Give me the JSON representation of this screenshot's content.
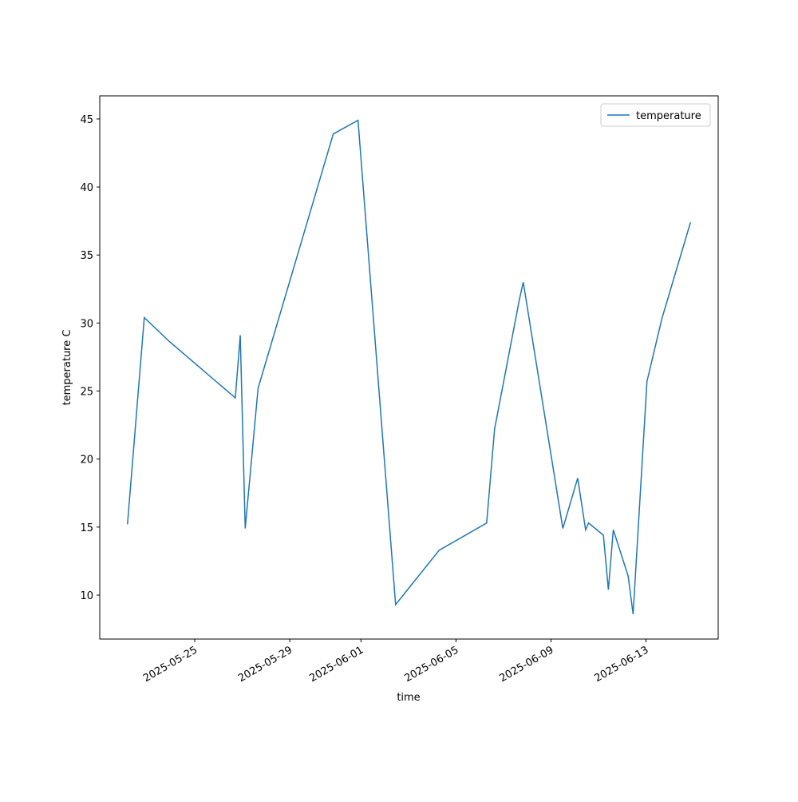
{
  "chart_data": {
    "type": "line",
    "xlabel": "time",
    "ylabel": "temperature C",
    "legend": "upper right",
    "x": [
      "2025-05-22T04:00",
      "2025-05-22T21:00",
      "2025-05-23T23:00",
      "2025-05-26T17:00",
      "2025-05-26T22:00",
      "2025-05-27T03:00",
      "2025-05-27T16:00",
      "2025-05-30T20:00",
      "2025-05-31T21:00",
      "2025-06-02T11:00",
      "2025-06-04T07:00",
      "2025-06-06T07:00",
      "2025-06-06T15:00",
      "2025-06-07T16:00",
      "2025-06-07T20:00",
      "2025-06-09T12:00",
      "2025-06-10T03:00",
      "2025-06-10T11:00",
      "2025-06-10T14:00",
      "2025-06-11T05:00",
      "2025-06-11T10:00",
      "2025-06-11T15:00",
      "2025-06-12T06:00",
      "2025-06-12T11:00",
      "2025-06-13T01:00",
      "2025-06-13T16:00",
      "2025-06-14T21:00"
    ],
    "series": [
      {
        "name": "temperature",
        "color": "#1f77b4",
        "values": [
          15.2,
          30.4,
          28.6,
          24.5,
          29.1,
          14.9,
          25.2,
          43.9,
          44.9,
          9.3,
          13.3,
          15.3,
          22.2,
          31.7,
          33.0,
          14.9,
          18.6,
          14.8,
          15.3,
          14.4,
          10.4,
          14.8,
          11.4,
          8.6,
          25.7,
          30.3,
          37.4
        ]
      }
    ],
    "xlim": [
      "2025-05-21T00:00",
      "2025-06-16T01:00"
    ],
    "xticks": [
      "2025-05-25",
      "2025-05-29",
      "2025-06-01",
      "2025-06-05",
      "2025-06-09",
      "2025-06-13"
    ],
    "ylim": [
      6.77,
      46.7
    ],
    "yticks": [
      10,
      15,
      20,
      25,
      30,
      35,
      40,
      45
    ]
  }
}
